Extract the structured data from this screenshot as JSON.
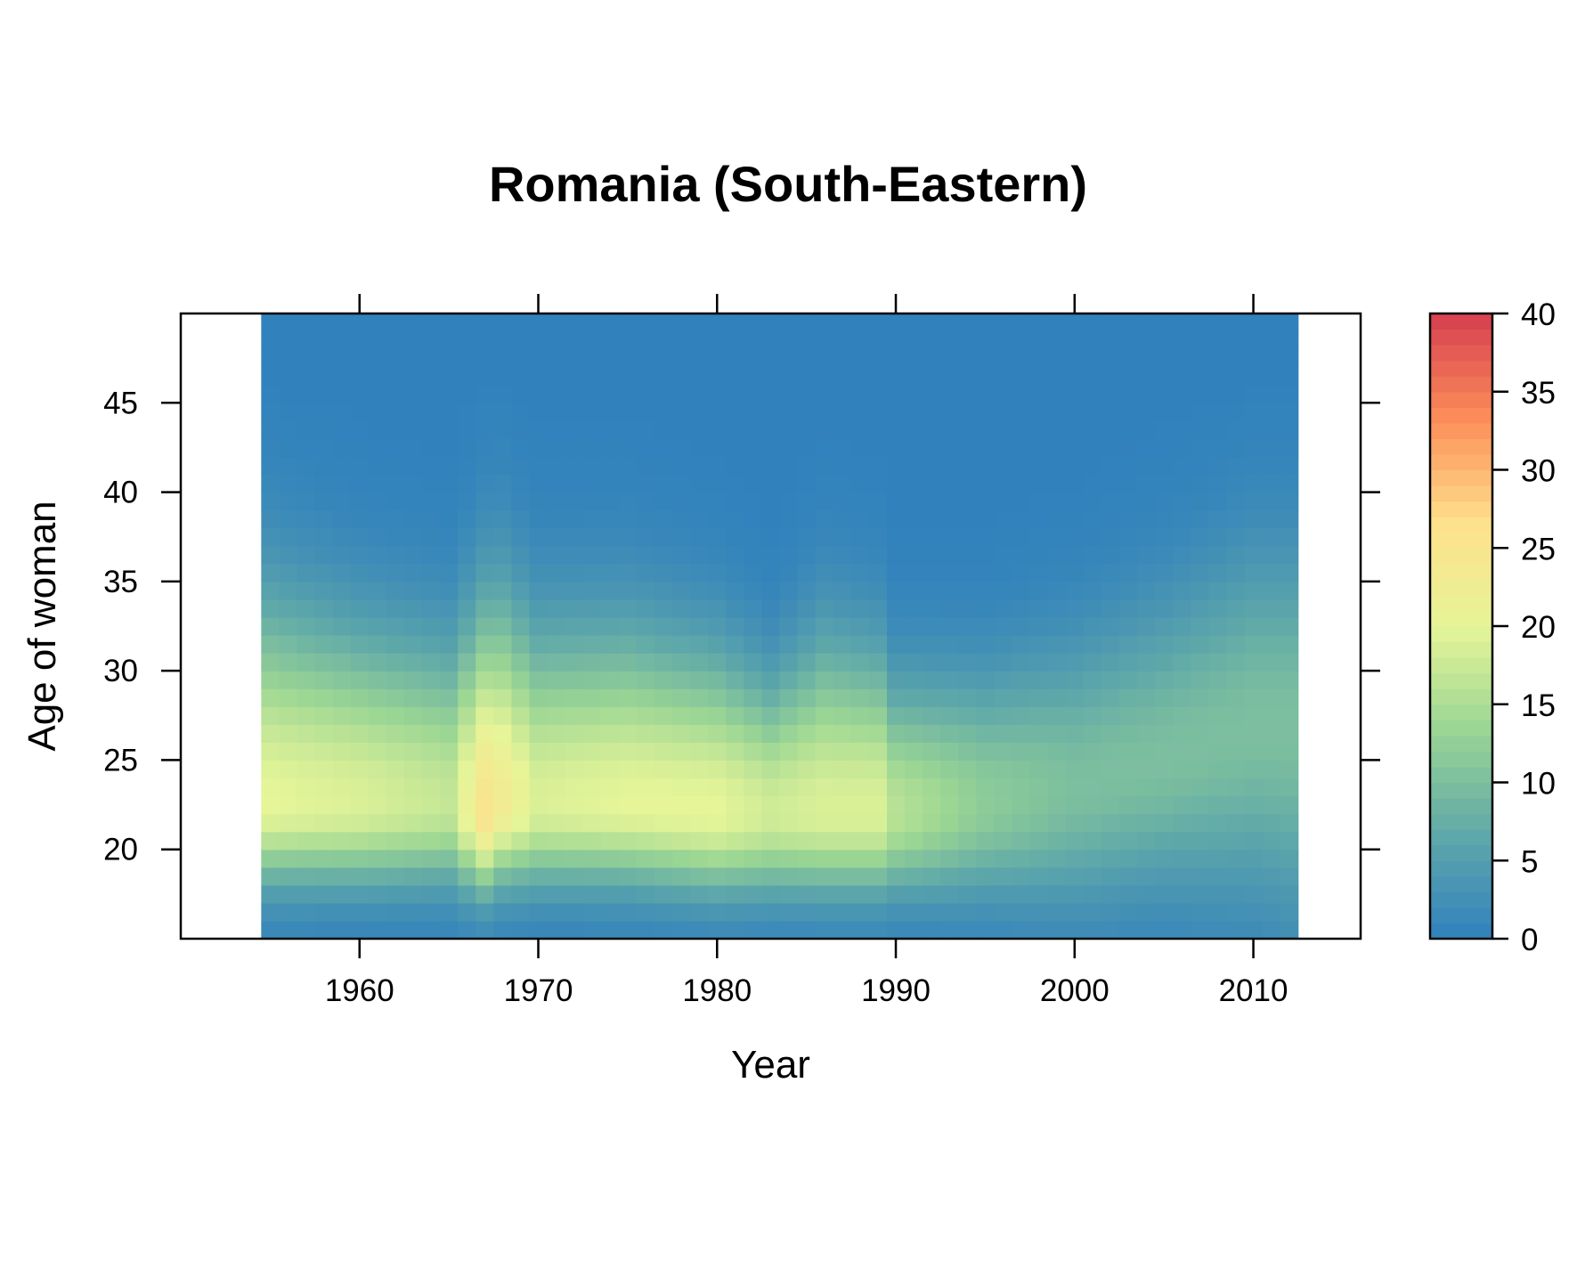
{
  "chart_data": {
    "type": "heatmap",
    "title": "Romania (South-Eastern)",
    "xlabel": "Year",
    "ylabel": "Age of woman",
    "xlim": [
      1950,
      2016
    ],
    "ylim": [
      15,
      50
    ],
    "x_ticks": [
      1960,
      1970,
      1980,
      1990,
      2000,
      2010
    ],
    "y_ticks": [
      20,
      25,
      30,
      35,
      40,
      45
    ],
    "x_range": [
      1955,
      2012
    ],
    "y_range": [
      15,
      49
    ],
    "colorbar": {
      "min": 0,
      "max": 40,
      "ticks": [
        0,
        5,
        10,
        15,
        20,
        25,
        30,
        35,
        40
      ],
      "colors": [
        "#3181bd",
        "#5fa8a9",
        "#99d594",
        "#e6f598",
        "#fee08b",
        "#fc8d59",
        "#d53e4f"
      ]
    },
    "grid": false,
    "legend": "right",
    "profiles": [
      {
        "year": 1955,
        "peak_age": 22.5,
        "peak": 20,
        "left_width": 3.0,
        "right_width": 7.5
      },
      {
        "year": 1960,
        "peak_age": 22.5,
        "peak": 19,
        "left_width": 3.0,
        "right_width": 6.5
      },
      {
        "year": 1965,
        "peak_age": 22.5,
        "peak": 17,
        "left_width": 3.0,
        "right_width": 6.0
      },
      {
        "year": 1967,
        "peak_age": 22.0,
        "peak": 25,
        "left_width": 3.0,
        "right_width": 7.5
      },
      {
        "year": 1968,
        "peak_age": 22.5,
        "peak": 23,
        "left_width": 3.0,
        "right_width": 7.5
      },
      {
        "year": 1970,
        "peak_age": 22.5,
        "peak": 19,
        "left_width": 3.0,
        "right_width": 6.5
      },
      {
        "year": 1975,
        "peak_age": 22.5,
        "peak": 20,
        "left_width": 3.0,
        "right_width": 6.5
      },
      {
        "year": 1980,
        "peak_age": 22.0,
        "peak": 20,
        "left_width": 3.0,
        "right_width": 6.0
      },
      {
        "year": 1983,
        "peak_age": 22.0,
        "peak": 18,
        "left_width": 3.0,
        "right_width": 5.0
      },
      {
        "year": 1986,
        "peak_age": 22.0,
        "peak": 19,
        "left_width": 3.0,
        "right_width": 6.5
      },
      {
        "year": 1989,
        "peak_age": 22.0,
        "peak": 19,
        "left_width": 3.0,
        "right_width": 6.0
      },
      {
        "year": 1990,
        "peak_age": 22.0,
        "peak": 16,
        "left_width": 3.0,
        "right_width": 5.0
      },
      {
        "year": 1995,
        "peak_age": 22.5,
        "peak": 12,
        "left_width": 3.5,
        "right_width": 5.0
      },
      {
        "year": 2000,
        "peak_age": 23.5,
        "peak": 10,
        "left_width": 4.5,
        "right_width": 5.5
      },
      {
        "year": 2005,
        "peak_age": 25.0,
        "peak": 10,
        "left_width": 5.0,
        "right_width": 6.0
      },
      {
        "year": 2010,
        "peak_age": 27.0,
        "peak": 10,
        "left_width": 6.5,
        "right_width": 6.5
      },
      {
        "year": 2012,
        "peak_age": 27.0,
        "peak": 10,
        "left_width": 7.0,
        "right_width": 6.5
      }
    ]
  }
}
